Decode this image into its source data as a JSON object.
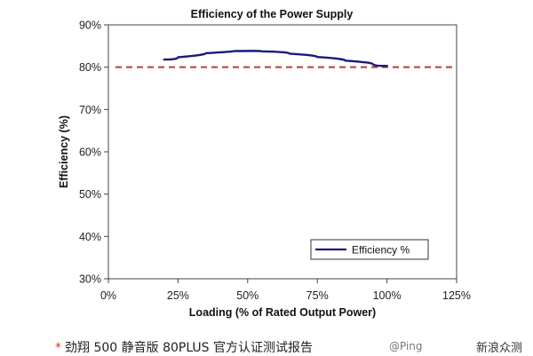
{
  "chart_data": {
    "type": "line",
    "title": "Efficiency of the Power Supply",
    "xlabel": "Loading (% of Rated Output Power)",
    "ylabel": "Efficiency (%)",
    "x_ticks": [
      "0%",
      "25%",
      "50%",
      "75%",
      "100%",
      "125%"
    ],
    "y_ticks": [
      "30%",
      "40%",
      "50%",
      "60%",
      "70%",
      "80%",
      "90%"
    ],
    "xlim": [
      0,
      125
    ],
    "ylim": [
      30,
      90
    ],
    "grid": false,
    "legend_position": "bottom-right",
    "series": [
      {
        "name": "Efficiency %",
        "color": "#1a1a7a",
        "x": [
          20,
          30,
          40,
          50,
          60,
          70,
          80,
          90,
          100
        ],
        "y": [
          81.8,
          82.9,
          83.7,
          83.9,
          83.6,
          82.8,
          82.0,
          81.1,
          80.3
        ]
      }
    ],
    "reference_line": {
      "y": 80,
      "color": "#c0392b",
      "style": "dashed"
    }
  },
  "caption": {
    "marker": "*",
    "text": "劲翔 500 静音版 80PLUS 官方认证测试报告"
  },
  "caption_right": {
    "partial_text": "@Ping",
    "partial_text2": "新浪众测"
  }
}
